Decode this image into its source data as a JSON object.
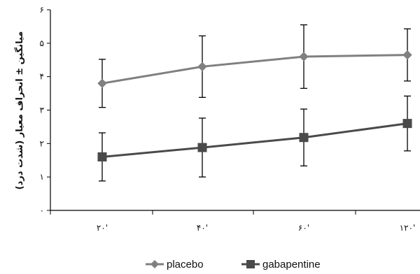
{
  "chart_data": {
    "type": "line",
    "title": "",
    "xlabel": "",
    "ylabel": "میانگین ± انحراف معیار (شدت درد)",
    "categories": [
      "۲۰'",
      "۴۰'",
      "۶۰'",
      "۱۲۰'"
    ],
    "yticks": [
      "۰",
      "۱",
      "۲",
      "۳",
      "۴",
      "۵",
      "۶"
    ],
    "ylim": [
      0,
      6
    ],
    "grid": false,
    "legend_position": "bottom",
    "series": [
      {
        "name": "placebo",
        "values": [
          3.8,
          4.3,
          4.6,
          4.65
        ],
        "error": [
          0.72,
          0.92,
          0.95,
          0.78
        ],
        "color": "#808080",
        "marker": "diamond"
      },
      {
        "name": "gabapentine",
        "values": [
          1.6,
          1.88,
          2.18,
          2.6
        ],
        "error": [
          0.72,
          0.88,
          0.85,
          0.82
        ],
        "color": "#4a4a4a",
        "marker": "square"
      }
    ]
  }
}
